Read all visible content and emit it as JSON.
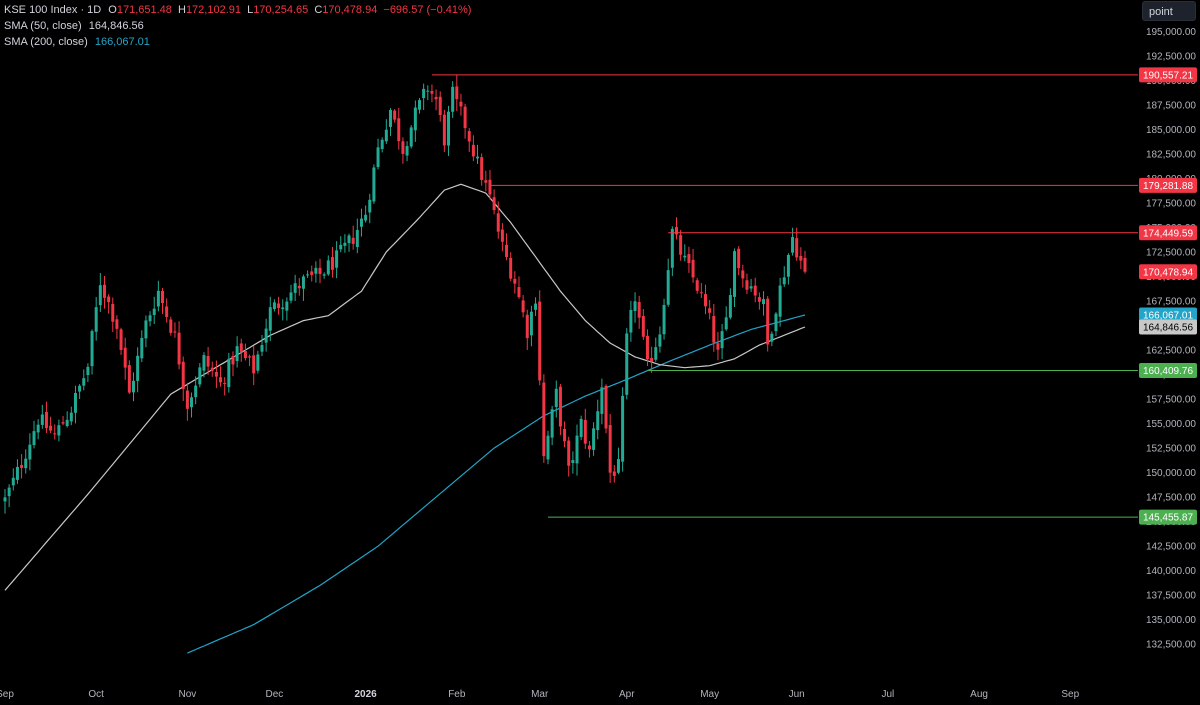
{
  "legend": {
    "title": "KSE 100 Index · 1D",
    "open_label": "O",
    "open": "171,651.48",
    "high_label": "H",
    "high": "172,102.91",
    "low_label": "L",
    "low": "170,254.65",
    "close_label": "C",
    "close": "170,478.94",
    "change": "−696.57 (−0.41%)",
    "sma50_label": "SMA (50, close)",
    "sma50_value": "164,846.56",
    "sma200_label": "SMA (200, close)",
    "sma200_value": "166,067.01"
  },
  "unit_button": "point",
  "colors": {
    "up": "#22ab94",
    "down": "#f23645",
    "sma50": "#c8c8c8",
    "sma200": "#22a5c9",
    "background": "#000000"
  },
  "chart_data": {
    "type": "candlestick",
    "ylim": [
      131250,
      196250
    ],
    "y_ticks": [
      132500,
      135000,
      137500,
      140000,
      142500,
      145000,
      147500,
      150000,
      152500,
      155000,
      157500,
      160000,
      162500,
      165000,
      167500,
      170000,
      172500,
      175000,
      177500,
      180000,
      182500,
      185000,
      187500,
      190000,
      192500,
      195000
    ],
    "y_tick_labels": [
      "132,500.00",
      "135,000.00",
      "137,500.00",
      "140,000.00",
      "142,500.00",
      "145,000.00",
      "147,500.00",
      "150,000.00",
      "152,500.00",
      "155,000.00",
      "157,500.00",
      "160,000.00",
      "162,500.00",
      "165,000.00",
      "167,500.00",
      "170,000.00",
      "172,500.00",
      "175,000.00",
      "177,500.00",
      "180,000.00",
      "182,500.00",
      "185,000.00",
      "187,500.00",
      "190,000.00",
      "192,500.00",
      "195,000.00"
    ],
    "x_labels": [
      "Sep",
      "Oct",
      "Nov",
      "Dec",
      "2026",
      "Feb",
      "Mar",
      "Apr",
      "May",
      "Jun",
      "Jul",
      "Aug",
      "Sep"
    ],
    "x_label_index": [
      0,
      22,
      44,
      65,
      87,
      109,
      129,
      150,
      170,
      191,
      213,
      235,
      257
    ],
    "x_label_bold": "2026",
    "candle_count": 194,
    "keyframes": [
      {
        "i": 0,
        "v": 147200
      },
      {
        "i": 4,
        "v": 151000
      },
      {
        "i": 8,
        "v": 155500
      },
      {
        "i": 12,
        "v": 153800
      },
      {
        "i": 16,
        "v": 156500
      },
      {
        "i": 20,
        "v": 160800
      },
      {
        "i": 23,
        "v": 169500
      },
      {
        "i": 27,
        "v": 165000
      },
      {
        "i": 30,
        "v": 158000
      },
      {
        "i": 34,
        "v": 165200
      },
      {
        "i": 37,
        "v": 168500
      },
      {
        "i": 41,
        "v": 163800
      },
      {
        "i": 44,
        "v": 157000
      },
      {
        "i": 48,
        "v": 161500
      },
      {
        "i": 52,
        "v": 159000
      },
      {
        "i": 56,
        "v": 162500
      },
      {
        "i": 60,
        "v": 160500
      },
      {
        "i": 64,
        "v": 166500
      },
      {
        "i": 68,
        "v": 168000
      },
      {
        "i": 72,
        "v": 169500
      },
      {
        "i": 76,
        "v": 170200
      },
      {
        "i": 80,
        "v": 171800
      },
      {
        "i": 84,
        "v": 174000
      },
      {
        "i": 87,
        "v": 176500
      },
      {
        "i": 90,
        "v": 183000
      },
      {
        "i": 93,
        "v": 187000
      },
      {
        "i": 96,
        "v": 183000
      },
      {
        "i": 99,
        "v": 186500
      },
      {
        "i": 102,
        "v": 189300
      },
      {
        "i": 104,
        "v": 188000
      },
      {
        "i": 106,
        "v": 184000
      },
      {
        "i": 108,
        "v": 188500
      },
      {
        "i": 111,
        "v": 185500
      },
      {
        "i": 114,
        "v": 181500
      },
      {
        "i": 117,
        "v": 178000
      },
      {
        "i": 120,
        "v": 173000
      },
      {
        "i": 123,
        "v": 169500
      },
      {
        "i": 126,
        "v": 164500
      },
      {
        "i": 128,
        "v": 168000
      },
      {
        "i": 130,
        "v": 151500
      },
      {
        "i": 133,
        "v": 158000
      },
      {
        "i": 136,
        "v": 150000
      },
      {
        "i": 139,
        "v": 155000
      },
      {
        "i": 141,
        "v": 152000
      },
      {
        "i": 144,
        "v": 159000
      },
      {
        "i": 146,
        "v": 150000
      },
      {
        "i": 148,
        "v": 150500
      },
      {
        "i": 150,
        "v": 163500
      },
      {
        "i": 152,
        "v": 168000
      },
      {
        "i": 155,
        "v": 160700
      },
      {
        "i": 158,
        "v": 164500
      },
      {
        "i": 161,
        "v": 174500
      },
      {
        "i": 164,
        "v": 171500
      },
      {
        "i": 167,
        "v": 169000
      },
      {
        "i": 170,
        "v": 165500
      },
      {
        "i": 172,
        "v": 162000
      },
      {
        "i": 174,
        "v": 165500
      },
      {
        "i": 176,
        "v": 172500
      },
      {
        "i": 178,
        "v": 170000
      },
      {
        "i": 181,
        "v": 168500
      },
      {
        "i": 183,
        "v": 167000
      },
      {
        "i": 184,
        "v": 163000
      },
      {
        "i": 186,
        "v": 167000
      },
      {
        "i": 188,
        "v": 170500
      },
      {
        "i": 190,
        "v": 174000
      },
      {
        "i": 192,
        "v": 171500
      },
      {
        "i": 193,
        "v": 170478.94
      }
    ],
    "sma50": [
      {
        "i": 0,
        "v": 138000
      },
      {
        "i": 20,
        "v": 147800
      },
      {
        "i": 40,
        "v": 158000
      },
      {
        "i": 56,
        "v": 162000
      },
      {
        "i": 64,
        "v": 164000
      },
      {
        "i": 72,
        "v": 165500
      },
      {
        "i": 78,
        "v": 166000
      },
      {
        "i": 86,
        "v": 168500
      },
      {
        "i": 92,
        "v": 172500
      },
      {
        "i": 100,
        "v": 176000
      },
      {
        "i": 106,
        "v": 178800
      },
      {
        "i": 110,
        "v": 179400
      },
      {
        "i": 116,
        "v": 178500
      },
      {
        "i": 122,
        "v": 175500
      },
      {
        "i": 128,
        "v": 172000
      },
      {
        "i": 134,
        "v": 168500
      },
      {
        "i": 140,
        "v": 165500
      },
      {
        "i": 146,
        "v": 163200
      },
      {
        "i": 152,
        "v": 161800
      },
      {
        "i": 158,
        "v": 161000
      },
      {
        "i": 164,
        "v": 160700
      },
      {
        "i": 170,
        "v": 160900
      },
      {
        "i": 176,
        "v": 161600
      },
      {
        "i": 182,
        "v": 163000
      },
      {
        "i": 193,
        "v": 164846.56
      }
    ],
    "sma200": [
      {
        "i": 44,
        "v": 131600
      },
      {
        "i": 60,
        "v": 134500
      },
      {
        "i": 76,
        "v": 138500
      },
      {
        "i": 90,
        "v": 142500
      },
      {
        "i": 104,
        "v": 147500
      },
      {
        "i": 118,
        "v": 152500
      },
      {
        "i": 130,
        "v": 155800
      },
      {
        "i": 140,
        "v": 157800
      },
      {
        "i": 150,
        "v": 159500
      },
      {
        "i": 160,
        "v": 161300
      },
      {
        "i": 170,
        "v": 163000
      },
      {
        "i": 180,
        "v": 164600
      },
      {
        "i": 193,
        "v": 166067.01
      }
    ],
    "horizontal_levels": [
      {
        "value": 190557.21,
        "label": "190,557.21",
        "color": "#f23645",
        "start_index": 103
      },
      {
        "value": 179281.88,
        "label": "179,281.88",
        "color": "#f23645",
        "start_index": 117
      },
      {
        "value": 174449.59,
        "label": "174,449.59",
        "color": "#f23645",
        "start_index": 160
      },
      {
        "value": 160409.76,
        "label": "160,409.76",
        "color": "#4caf50",
        "start_index": 155
      },
      {
        "value": 145455.87,
        "label": "145,455.87",
        "color": "#4caf50",
        "start_index": 131
      }
    ],
    "price_tags": [
      {
        "value": 170478.94,
        "label": "170,478.94",
        "bg": "#f23645",
        "fg": "#ffffff"
      },
      {
        "value": 166067.01,
        "label": "166,067.01",
        "bg": "#22a5c9",
        "fg": "#ffffff"
      },
      {
        "value": 164846.56,
        "label": "164,846.56",
        "bg": "#c8c8c8",
        "fg": "#000000"
      }
    ]
  }
}
